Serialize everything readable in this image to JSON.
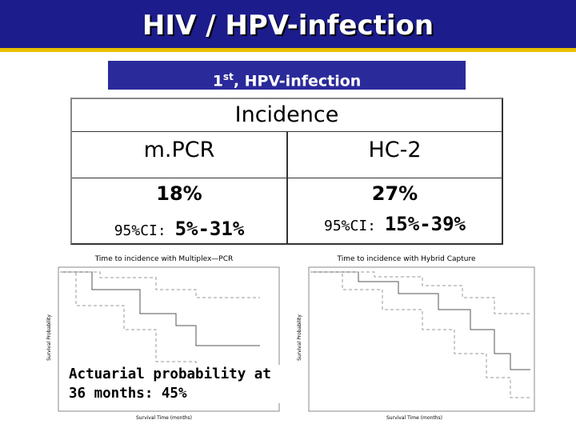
{
  "header": {
    "title": "HIV / HPV-infection"
  },
  "subtitle": {
    "number": "1",
    "suffix": "st",
    "rest": ", HPV-infection"
  },
  "table": {
    "caption": "Incidence",
    "headers": [
      "m.PCR",
      "HC-2"
    ],
    "incidence": [
      "18%",
      "27%"
    ],
    "ci_label": "95%CI:",
    "ci": [
      "5%-31%",
      "15%-39%"
    ]
  },
  "charts": [
    {
      "title": "Time to incidence with Multiplex—PCR",
      "y_label": "Survival Probability",
      "x_label": "Survival Time (months)"
    },
    {
      "title": "Time to incidence with Hybrid Capture",
      "y_label": "Survival Probability",
      "x_label": "Survival Time (months)"
    }
  ],
  "annotation": {
    "lines": [
      "Actuarial probability at",
      "36 months: 45%"
    ]
  }
}
